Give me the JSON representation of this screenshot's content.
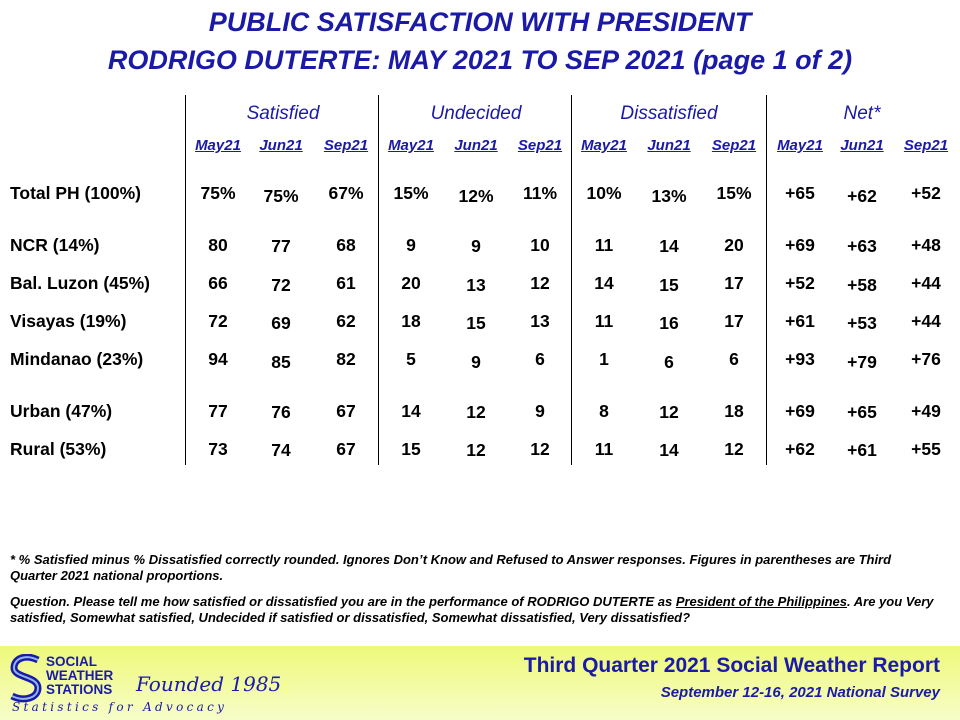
{
  "title": {
    "line1": "PUBLIC SATISFACTION  WITH PRESIDENT",
    "line2": "RODRIGO DUTERTE: MAY 2021 TO SEP 2021 (page 1 of 2)"
  },
  "table": {
    "groups": [
      "Satisfied",
      "Undecided",
      "Dissatisfied",
      "Net*"
    ],
    "periods": [
      "May21",
      "Jun21",
      "Sep21"
    ],
    "rows": [
      {
        "label": "Total PH (100%)",
        "values": [
          "75%",
          "75%",
          "67%",
          "15%",
          "12%",
          "11%",
          "10%",
          "13%",
          "15%",
          "+65",
          "+62",
          "+52"
        ]
      },
      {
        "label": "NCR (14%)",
        "values": [
          "80",
          "77",
          "68",
          "9",
          "9",
          "10",
          "11",
          "14",
          "20",
          "+69",
          "+63",
          "+48"
        ]
      },
      {
        "label": "Bal. Luzon (45%)",
        "values": [
          "66",
          "72",
          "61",
          "20",
          "13",
          "12",
          "14",
          "15",
          "17",
          "+52",
          "+58",
          "+44"
        ]
      },
      {
        "label": "Visayas (19%)",
        "values": [
          "72",
          "69",
          "62",
          "18",
          "15",
          "13",
          "11",
          "16",
          "17",
          "+61",
          "+53",
          "+44"
        ]
      },
      {
        "label": "Mindanao (23%)",
        "values": [
          "94",
          "85",
          "82",
          "5",
          "9",
          "6",
          "1",
          "6",
          "6",
          "+93",
          "+79",
          "+76"
        ]
      },
      {
        "label": "Urban (47%)",
        "values": [
          "77",
          "76",
          "67",
          "14",
          "12",
          "9",
          "8",
          "12",
          "18",
          "+69",
          "+65",
          "+49"
        ]
      },
      {
        "label": "Rural (53%)",
        "values": [
          "73",
          "74",
          "67",
          "15",
          "12",
          "12",
          "11",
          "14",
          "12",
          "+62",
          "+61",
          "+55"
        ]
      }
    ]
  },
  "notes": {
    "footnote": "* % Satisfied  minus  % Dissatisfied  correctly rounded.  Ignores Don’t Know and Refused  to Answer responses.  Figures  in parentheses  are Third Quarter  2021 national  proportions.",
    "question_intro": "Question.  Please tell me how satisfied  or dissatisfied  you are in the performance  of RODRIGO DUTERTE  as ",
    "question_office": "President  of the Philippines",
    "question_rest": ".  Are you Very satisfied,  Somewhat satisfied,  Undecided  if satisfied  or dissatisfied,  Somewhat dissatisfied,  Very dissatisfied?"
  },
  "footer": {
    "logo_lines": [
      "SOCIAL",
      "WEATHER",
      "STATIONS"
    ],
    "founded": "Founded 1985",
    "tagline": "Statistics for Advocacy",
    "report_title": "Third Quarter 2021 Social Weather Report",
    "survey": "September 12-16, 2021 National Survey",
    "accent_color": "#1a1aa6"
  }
}
